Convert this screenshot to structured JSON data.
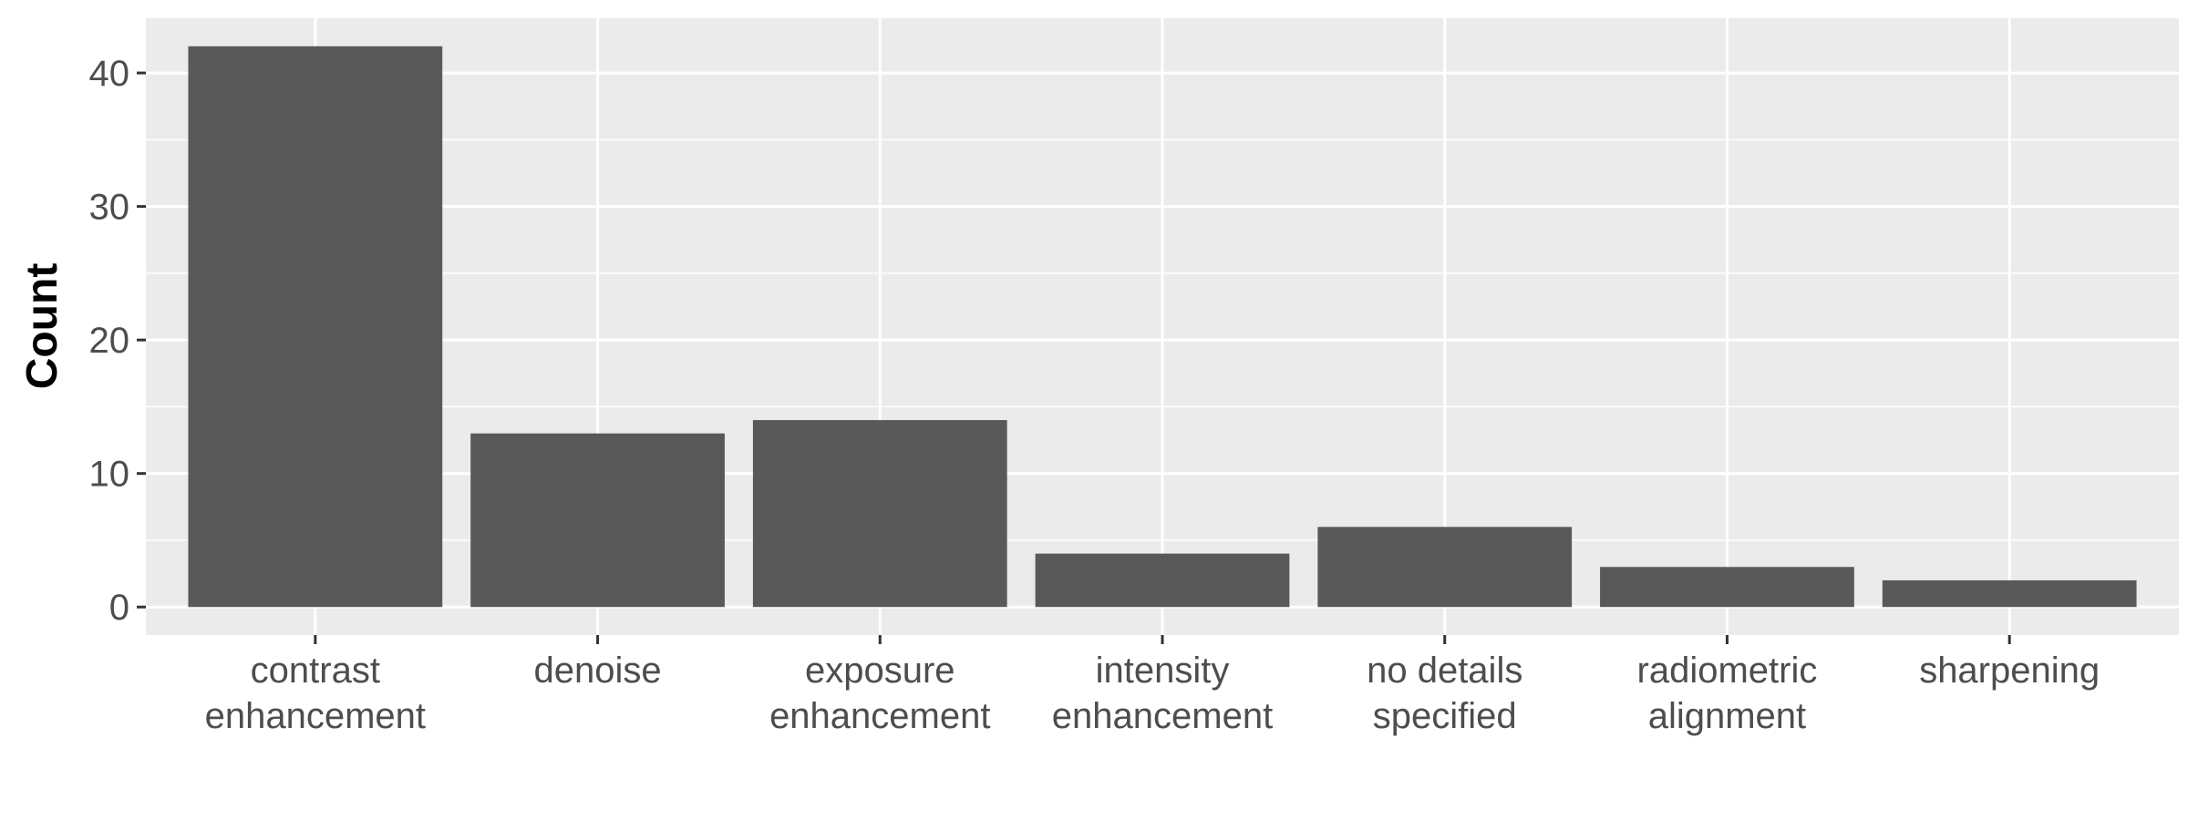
{
  "chart_data": {
    "type": "bar",
    "title": "",
    "xlabel": "",
    "ylabel": "Count",
    "categories": [
      [
        "contrast",
        "enhancement"
      ],
      [
        "denoise"
      ],
      [
        "exposure",
        "enhancement"
      ],
      [
        "intensity",
        "enhancement"
      ],
      [
        "no details",
        "specified"
      ],
      [
        "radiometric",
        "alignment"
      ],
      [
        "sharpening"
      ]
    ],
    "values": [
      42,
      13,
      14,
      4,
      6,
      3,
      2
    ],
    "ylim": [
      -2.1,
      44.1
    ],
    "yticks": [
      0,
      10,
      20,
      30,
      40
    ],
    "y_minor_ticks": [
      5,
      15,
      25,
      35
    ],
    "grid": true,
    "colors": {
      "bar": "#595959",
      "panel": "#ebebeb",
      "grid": "#ffffff",
      "tick": "#333333"
    }
  }
}
